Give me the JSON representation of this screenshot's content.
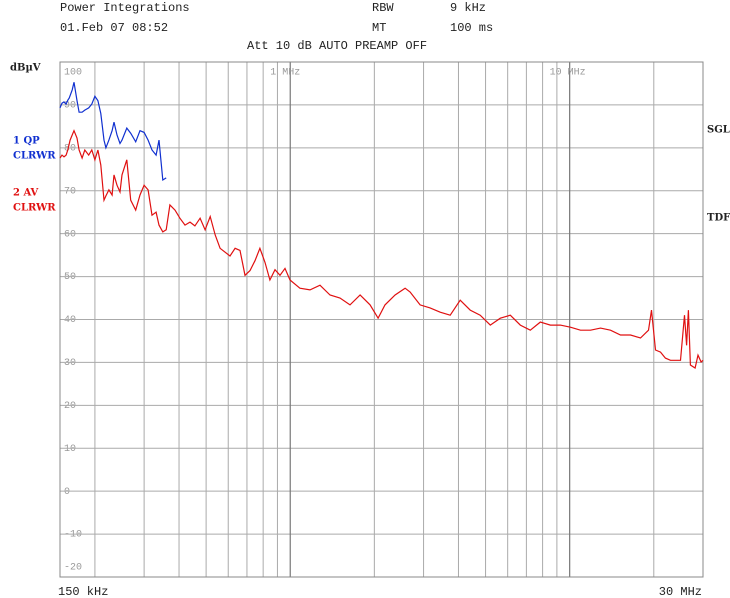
{
  "header": {
    "company": "Power Integrations",
    "date": "01.Feb 07 08:52",
    "rbw_label": "RBW",
    "rbw_value": "9 kHz",
    "mt_label": "MT",
    "mt_value": "100 ms",
    "settings": "Att 10 dB AUTO PREAMP OFF"
  },
  "side": {
    "sgl": "SGL",
    "tdf": "TDF"
  },
  "chart_data": {
    "type": "line",
    "ylabel": "dBµV",
    "xscale": "log",
    "grid": true,
    "xlim": [
      0.15,
      30
    ],
    "ylim": [
      -20,
      100
    ],
    "xticks": [
      {
        "value": 0.15,
        "label": "150 kHz"
      },
      {
        "value": 1,
        "label": "1 MHz"
      },
      {
        "value": 10,
        "label": "10 MHz"
      },
      {
        "value": 30,
        "label": "30 MHz"
      }
    ],
    "xgrid": [
      0.2,
      0.3,
      0.4,
      0.5,
      0.6,
      0.7,
      0.8,
      0.9,
      2,
      3,
      4,
      5,
      6,
      7,
      8,
      9,
      20
    ],
    "yticks": [
      -20,
      -10,
      0,
      10,
      20,
      30,
      40,
      50,
      60,
      70,
      80,
      90,
      100
    ],
    "series": [
      {
        "name": "1 QP",
        "mode": "CLRWR",
        "color": "#1030d0",
        "x": [
          0.15,
          0.1525,
          0.155,
          0.1577,
          0.16,
          0.1618,
          0.1658,
          0.1684,
          0.1725,
          0.1755,
          0.18,
          0.184,
          0.19,
          0.195,
          0.2,
          0.205,
          0.21,
          0.2155,
          0.219,
          0.2245,
          0.2305,
          0.234,
          0.24,
          0.246,
          0.25,
          0.26,
          0.2685,
          0.28,
          0.29,
          0.3,
          0.31,
          0.32,
          0.331,
          0.339,
          0.35,
          0.36
        ],
        "values": [
          89.3,
          90.4,
          90.7,
          90.2,
          91.1,
          91.6,
          93.5,
          95.3,
          91,
          88.3,
          88.3,
          88.8,
          89.3,
          90.2,
          92,
          91,
          88,
          81.8,
          80,
          81.8,
          84,
          86,
          83,
          81,
          81.8,
          84.6,
          83.4,
          81.4,
          84,
          83.6,
          81.8,
          79.5,
          78.3,
          81.8,
          72.5,
          73
        ]
      },
      {
        "name": "2 AV",
        "mode": "CLRWR",
        "color": "#e01010",
        "x": [
          0.15,
          0.1525,
          0.155,
          0.1577,
          0.16,
          0.163,
          0.1658,
          0.1684,
          0.1725,
          0.1755,
          0.18,
          0.184,
          0.19,
          0.195,
          0.2,
          0.205,
          0.21,
          0.2155,
          0.219,
          0.2245,
          0.2305,
          0.234,
          0.24,
          0.246,
          0.25,
          0.26,
          0.2685,
          0.28,
          0.29,
          0.3,
          0.31,
          0.32,
          0.331,
          0.339,
          0.35,
          0.36,
          0.371,
          0.387,
          0.403,
          0.42,
          0.438,
          0.456,
          0.476,
          0.496,
          0.517,
          0.539,
          0.561,
          0.609,
          0.635,
          0.661,
          0.689,
          0.718,
          0.748,
          0.779,
          0.812,
          0.846,
          0.882,
          0.919,
          0.958,
          0.998,
          1.083,
          1.177,
          1.278,
          1.388,
          1.507,
          1.637,
          1.778,
          1.931,
          2.062,
          2.184,
          2.372,
          2.576,
          2.685,
          2.916,
          3.167,
          3.44,
          3.736,
          4.057,
          4.406,
          4.786,
          5.198,
          5.645,
          6.13,
          6.66,
          7.23,
          7.85,
          8.53,
          9.26,
          10.06,
          10.93,
          11.87,
          12.89,
          14.0,
          15.2,
          16.51,
          17.93,
          19.15,
          19.63,
          20.28,
          21.13,
          22.0,
          22.95,
          24.93,
          25.76,
          26.2,
          26.6,
          27.05,
          28.1,
          28.8,
          29.53,
          30.0
        ],
        "values": [
          77.6,
          78.3,
          77.9,
          78.3,
          79.5,
          81.8,
          83,
          84,
          82.3,
          79.5,
          77.6,
          79.5,
          78.3,
          79.5,
          77.2,
          79.5,
          76,
          67.8,
          68.8,
          70.2,
          69,
          73.7,
          71.3,
          69.7,
          73.7,
          77.2,
          67.8,
          65.5,
          69,
          71.3,
          70.2,
          64.3,
          65,
          62,
          60.4,
          60.9,
          66.7,
          65.5,
          63.6,
          62,
          62.7,
          61.8,
          63.6,
          60.9,
          64,
          59.7,
          56.6,
          54.8,
          56.6,
          56.1,
          50.3,
          51.4,
          53.7,
          56.6,
          53.3,
          49.2,
          51.6,
          50.3,
          51.9,
          49.2,
          47.3,
          46.9,
          48,
          45.7,
          45,
          43.4,
          45.7,
          43.4,
          40.3,
          43.4,
          45.7,
          47.3,
          46.4,
          43.4,
          42.7,
          41.7,
          41,
          44.5,
          42.2,
          41,
          38.7,
          40.3,
          41,
          38.7,
          37.5,
          39.4,
          38.7,
          38.7,
          38.2,
          37.5,
          37.5,
          38,
          37.5,
          36.4,
          36.4,
          35.7,
          37.5,
          42.2,
          32.9,
          32.4,
          31,
          30.5,
          30.5,
          41,
          34,
          42.2,
          29.4,
          28.7,
          31.7,
          30.1,
          30.5
        ]
      }
    ]
  }
}
